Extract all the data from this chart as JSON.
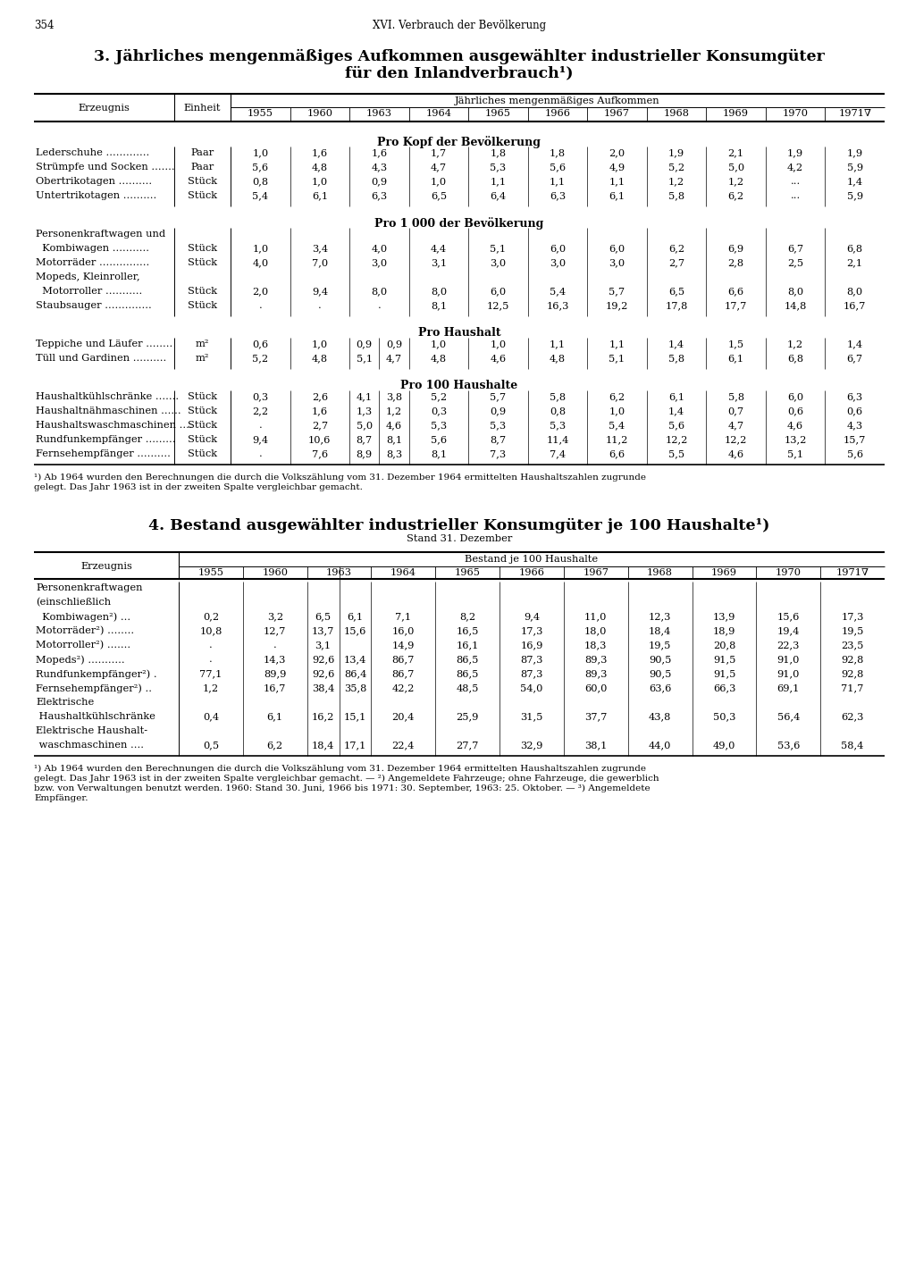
{
  "page_num": "354",
  "header": "XVI. Verbrauch der Bevölkerung",
  "title1": "3. Jährliches mengenmäßiges Aufkommen ausgewählter industrieller Konsumgüter",
  "title1b": "für den Inlandverbrauch¹)",
  "table1_header_span": "Jährliches mengenmäßiges Aufkommen",
  "table1_col1": "Erzeugnis",
  "table1_col2": "Einheit",
  "years": [
    "1955",
    "1960",
    "1963",
    "1964",
    "1965",
    "1966",
    "1967",
    "1968",
    "1969",
    "1970",
    "1971∇"
  ],
  "section1_title": "Pro Kopf der Bevölkerung",
  "section1_rows": [
    [
      "Lederschuhe .............",
      "Paar",
      "1,0",
      "1,6",
      "1,6",
      "1,7",
      "1,8",
      "1,8",
      "2,0",
      "1,9",
      "2,1",
      "1,9",
      "1,9"
    ],
    [
      "Strümpfe und Socken .......",
      "Paar",
      "5,6",
      "4,8",
      "4,3",
      "4,7",
      "5,3",
      "5,6",
      "4,9",
      "5,2",
      "5,0",
      "4,2",
      "5,9"
    ],
    [
      "Obertrikotagen ..........",
      "Stück",
      "0,8",
      "1,0",
      "0,9",
      "1,0",
      "1,1",
      "1,1",
      "1,1",
      "1,2",
      "1,2",
      "...",
      "1,4"
    ],
    [
      "Untertrikotagen ..........",
      "Stück",
      "5,4",
      "6,1",
      "6,3",
      "6,5",
      "6,4",
      "6,3",
      "6,1",
      "5,8",
      "6,2",
      "...",
      "5,9"
    ]
  ],
  "section2_title": "Pro 1 000 der Bevölkerung",
  "section2_rows": [
    [
      "Personenkraftwagen und",
      null,
      null,
      null,
      null,
      null,
      null,
      null,
      null,
      null,
      null,
      null,
      null
    ],
    [
      "  Kombiwagen ...........",
      "Stück",
      "1,0",
      "3,4",
      "4,0",
      "4,4",
      "5,1",
      "6,0",
      "6,0",
      "6,2",
      "6,9",
      "6,7",
      "6,8"
    ],
    [
      "Motorräder ...............",
      "Stück",
      "4,0",
      "7,0",
      "3,0",
      "3,1",
      "3,0",
      "3,0",
      "3,0",
      "2,7",
      "2,8",
      "2,5",
      "2,1"
    ],
    [
      "Mopeds, Kleinroller,",
      null,
      null,
      null,
      null,
      null,
      null,
      null,
      null,
      null,
      null,
      null,
      null
    ],
    [
      "  Motorroller ...........",
      "Stück",
      "2,0",
      "9,4",
      "8,0",
      "8,0",
      "6,0",
      "5,4",
      "5,7",
      "6,5",
      "6,6",
      "8,0",
      "8,0"
    ],
    [
      "Staubsauger ..............",
      "Stück",
      ".",
      ".",
      ".",
      "8,1",
      "12,5",
      "16,3",
      "19,2",
      "17,8",
      "17,7",
      "14,8",
      "16,7"
    ]
  ],
  "section3_title": "Pro Haushalt",
  "section3_rows": [
    [
      "Teppiche und Läufer ........",
      "m²",
      "0,6",
      "1,0",
      "0,9",
      "0,9",
      "1,0",
      "1,0",
      "1,1",
      "1,1",
      "1,4",
      "1,5",
      "1,2",
      "1,4"
    ],
    [
      "Tüll und Gardinen ..........",
      "m²",
      "5,2",
      "4,8",
      "5,1",
      "4,7",
      "4,8",
      "4,6",
      "4,8",
      "5,1",
      "5,8",
      "6,1",
      "6,8",
      "6,7"
    ]
  ],
  "section4_title": "Pro 100 Haushalte",
  "section4_rows": [
    [
      "Haushaltkühlschränke .......",
      "Stück",
      "0,3",
      "2,6",
      "4,1",
      "3,8",
      "5,2",
      "5,7",
      "5,8",
      "6,2",
      "6,1",
      "5,8",
      "6,0",
      "6,3"
    ],
    [
      "Haushaltnähmaschinen ......",
      "Stück",
      "2,2",
      "1,6",
      "1,3",
      "1,2",
      "0,3",
      "0,9",
      "0,8",
      "1,0",
      "1,4",
      "0,7",
      "0,6",
      "0,6"
    ],
    [
      "Haushaltswaschmaschinen ....",
      "Stück",
      ".",
      "2,7",
      "5,0",
      "4,6",
      "5,3",
      "5,3",
      "5,3",
      "5,4",
      "5,6",
      "4,7",
      "4,6",
      "4,3"
    ],
    [
      "Rundfunkempfänger .........",
      "Stück",
      "9,4",
      "10,6",
      "8,7",
      "8,1",
      "5,6",
      "8,7",
      "11,4",
      "11,2",
      "12,2",
      "12,2",
      "13,2",
      "15,7"
    ],
    [
      "Fernsehempfänger ..........",
      "Stück",
      ".",
      "7,6",
      "8,9",
      "8,3",
      "8,1",
      "7,3",
      "7,4",
      "6,6",
      "5,5",
      "4,6",
      "5,1",
      "5,6"
    ]
  ],
  "footnote1a": "¹) Ab 1964 wurden den Berechnungen die durch die Volkszählung vom 31. Dezember 1964 ermittelten Haushaltszahlen zugrunde",
  "footnote1b": "gelegt. Das Jahr 1963 ist in der zweiten Spalte vergleichbar gemacht.",
  "title2": "4. Bestand ausgewählter industrieller Konsumgüter je 100 Haushalte¹)",
  "subtitle2": "Stand 31. Dezember",
  "table2_col1": "Erzeugnis",
  "table2_years": [
    "1955",
    "1960",
    "1963",
    "1964",
    "1965",
    "1966",
    "1967",
    "1968",
    "1969",
    "1970",
    "1971∇"
  ],
  "table2_header": "Bestand je 100 Haushalte",
  "table2_rows": [
    [
      "Personenkraftwagen",
      null,
      null,
      null,
      null,
      null,
      null,
      null,
      null,
      null,
      null,
      null
    ],
    [
      "(einschließlich",
      null,
      null,
      null,
      null,
      null,
      null,
      null,
      null,
      null,
      null,
      null
    ],
    [
      "  Kombiwagen²) ...",
      "0,2",
      "3,2",
      "6,5",
      "6,1",
      "7,1",
      "8,2",
      "9,4",
      "11,0",
      "12,3",
      "13,9",
      "15,6",
      "17,3"
    ],
    [
      "Motorräder²) ........",
      "10,8",
      "12,7",
      "13,7",
      "15,6",
      "16,0",
      "16,5",
      "17,3",
      "18,0",
      "18,4",
      "18,9",
      "19,4",
      "19,5"
    ],
    [
      "Motorroller²) .......",
      ".",
      ".",
      "3,1",
      "",
      "14,9",
      "16,1",
      "16,9",
      "18,3",
      "19,5",
      "20,8",
      "22,3",
      "23,5"
    ],
    [
      "Mopeds²) ...........",
      ".",
      "14,3",
      "92,6",
      "13,4",
      "86,7",
      "86,5",
      "87,3",
      "89,3",
      "90,5",
      "91,5",
      "91,0",
      "92,8"
    ],
    [
      "Rundfunkempfänger²) .",
      "77,1",
      "89,9",
      "92,6",
      "86,4",
      "86,7",
      "86,5",
      "87,3",
      "89,3",
      "90,5",
      "91,5",
      "91,0",
      "92,8"
    ],
    [
      "Fernsehempfänger²) ..",
      "1,2",
      "16,7",
      "38,4",
      "35,8",
      "42,2",
      "48,5",
      "54,0",
      "60,0",
      "63,6",
      "66,3",
      "69,1",
      "71,7"
    ],
    [
      "Elektrische",
      null,
      null,
      null,
      null,
      null,
      null,
      null,
      null,
      null,
      null,
      null
    ],
    [
      " Haushaltkühlschränke",
      "0,4",
      "6,1",
      "16,2",
      "15,1",
      "20,4",
      "25,9",
      "31,5",
      "37,7",
      "43,8",
      "50,3",
      "56,4",
      "62,3"
    ],
    [
      "Elektrische Haushalt-",
      null,
      null,
      null,
      null,
      null,
      null,
      null,
      null,
      null,
      null,
      null
    ],
    [
      " waschmaschinen ....",
      "0,5",
      "6,2",
      "18,4",
      "17,1",
      "22,4",
      "27,7",
      "32,9",
      "38,1",
      "44,0",
      "49,0",
      "53,6",
      "58,4"
    ]
  ],
  "footnote2a": "¹) Ab 1964 wurden den Berechnungen die durch die Volkszählung vom 31. Dezember 1964 ermittelten Haushaltszahlen zugrunde",
  "footnote2b": "gelegt. Das Jahr 1963 ist in der zweiten Spalte vergleichbar gemacht. — ²) Angemeldete Fahrzeuge; ohne Fahrzeuge, die gewerblich",
  "footnote2c": "bzw. von Verwaltungen benutzt werden. 1960: Stand 30. Juni, 1966 bis 1971: 30. September, 1963: 25. Oktober. — ³) Angemeldete",
  "footnote2d": "Empfänger."
}
